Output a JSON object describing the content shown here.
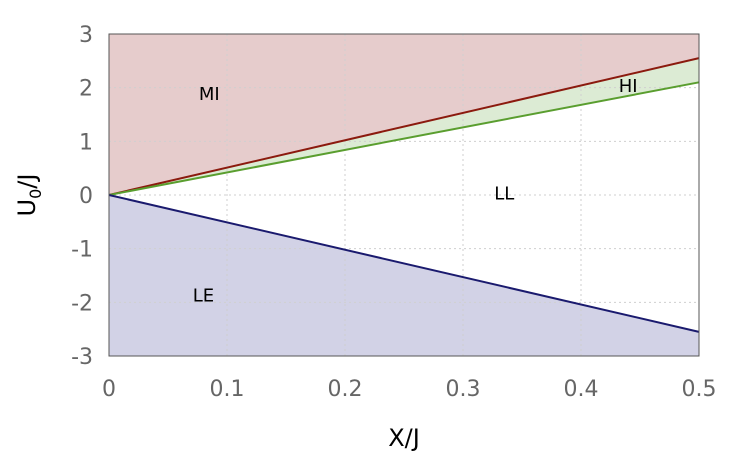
{
  "chart_data": {
    "type": "area",
    "xlabel": "X/J",
    "ylabel_main": "U",
    "ylabel_sub": "0",
    "ylabel_tail": "/J",
    "xlim": [
      0,
      0.5
    ],
    "ylim": [
      -3,
      3
    ],
    "x_ticks": [
      0,
      0.1,
      0.2,
      0.3,
      0.4,
      0.5
    ],
    "x_tick_labels": [
      "0",
      "0.1",
      "0.2",
      "0.3",
      "0.4",
      "0.5"
    ],
    "y_ticks": [
      3,
      2,
      1,
      0,
      -1,
      -2,
      -3
    ],
    "y_tick_labels": [
      "3",
      "2",
      "1",
      "0",
      "-1",
      "-2",
      "-3"
    ],
    "grid": true,
    "series": [
      {
        "x": [
          0,
          0.5
        ],
        "y": [
          0,
          2.55
        ],
        "color": "#8b1a0e"
      },
      {
        "x": [
          0,
          0.5
        ],
        "y": [
          0,
          2.1
        ],
        "color": "#5a9e2f"
      },
      {
        "x": [
          0,
          0.5
        ],
        "y": [
          0,
          -2.55
        ],
        "color": "#1a1a6e"
      }
    ],
    "regions": [
      {
        "label": "MI",
        "label_x": 0.085,
        "label_y": 1.9,
        "color": "#e6cccc"
      },
      {
        "label": "HI",
        "label_x": 0.44,
        "label_y": 2.05,
        "color": "#dcebd4"
      },
      {
        "label": "LL",
        "label_x": 0.335,
        "label_y": 0.05,
        "color": "#ffffff"
      },
      {
        "label": "LE",
        "label_x": 0.08,
        "label_y": -1.85,
        "color": "#d2d2e6"
      }
    ]
  }
}
